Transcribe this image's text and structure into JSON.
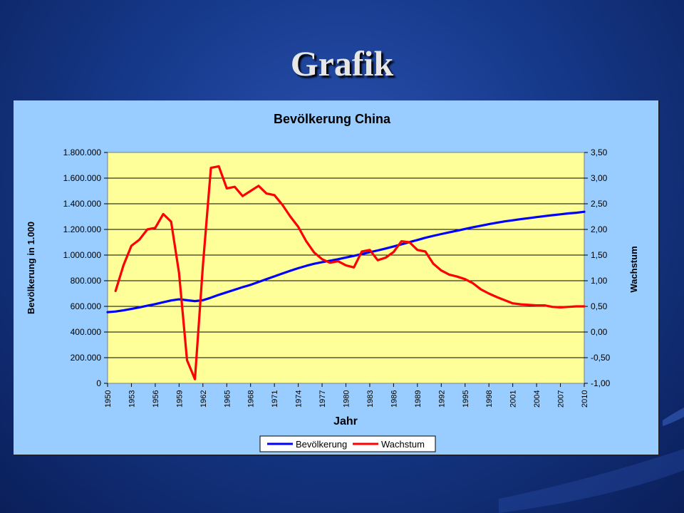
{
  "slide": {
    "title": "Grafik"
  },
  "chart_data": {
    "type": "line",
    "title": "Bevölkerung China",
    "xlabel": "Jahr",
    "ylabel_left": "Bevölkerung in 1.000",
    "ylabel_right": "Wachstum",
    "x": [
      1950,
      1951,
      1952,
      1953,
      1954,
      1955,
      1956,
      1957,
      1958,
      1959,
      1960,
      1961,
      1962,
      1963,
      1964,
      1965,
      1966,
      1967,
      1968,
      1969,
      1970,
      1971,
      1972,
      1973,
      1974,
      1975,
      1976,
      1977,
      1978,
      1979,
      1980,
      1981,
      1982,
      1983,
      1984,
      1985,
      1986,
      1987,
      1988,
      1989,
      1990,
      1991,
      1992,
      1993,
      1994,
      1995,
      1996,
      1997,
      1998,
      1999,
      2000,
      2001,
      2002,
      2003,
      2004,
      2005,
      2006,
      2007,
      2008,
      2009,
      2010
    ],
    "x_tick_labels": [
      "1950",
      "1953",
      "1956",
      "1959",
      "1962",
      "1965",
      "1968",
      "1971",
      "1974",
      "1977",
      "1980",
      "1983",
      "1986",
      "1989",
      "1992",
      "1995",
      "1998",
      "2001",
      "2004",
      "2007",
      "2010"
    ],
    "y_left_ticks": [
      "0",
      "200.000",
      "400.000",
      "600.000",
      "800.000",
      "1.000.000",
      "1.200.000",
      "1.400.000",
      "1.600.000",
      "1.800.000"
    ],
    "y_right_ticks": [
      "-1,00",
      "-0,50",
      "0,00",
      "0,50",
      "1,00",
      "1,50",
      "2,00",
      "2,50",
      "3,00",
      "3,50"
    ],
    "ylim_left": [
      0,
      1800000
    ],
    "ylim_right": [
      -1.0,
      3.5
    ],
    "grid": true,
    "legend_position": "bottom-right",
    "series": [
      {
        "name": "Bevölkerung",
        "axis": "left",
        "color": "#0000ff",
        "values": [
          555000,
          560000,
          569000,
          580000,
          592000,
          605000,
          618000,
          632000,
          646000,
          655000,
          648000,
          641000,
          648000,
          668000,
          690000,
          710000,
          730000,
          750000,
          768000,
          790000,
          812000,
          834000,
          856000,
          878000,
          898000,
          916000,
          932000,
          945000,
          956000,
          968000,
          981000,
          994000,
          1008000,
          1022000,
          1036000,
          1051000,
          1067000,
          1084000,
          1101000,
          1118000,
          1135000,
          1150000,
          1164000,
          1177000,
          1190000,
          1204000,
          1217000,
          1229000,
          1241000,
          1252000,
          1263000,
          1271000,
          1280000,
          1288000,
          1296000,
          1304000,
          1311000,
          1318000,
          1325000,
          1330000,
          1338000
        ]
      },
      {
        "name": "Wachstum",
        "axis": "right",
        "color": "#ff0000",
        "values": [
          null,
          0.8,
          1.3,
          1.68,
          1.8,
          2.0,
          2.03,
          2.3,
          2.15,
          1.15,
          -0.55,
          -0.92,
          1.3,
          3.2,
          3.23,
          2.8,
          2.83,
          2.65,
          2.75,
          2.85,
          2.7,
          2.67,
          2.48,
          2.25,
          2.05,
          1.77,
          1.55,
          1.42,
          1.35,
          1.38,
          1.3,
          1.26,
          1.57,
          1.6,
          1.4,
          1.45,
          1.56,
          1.77,
          1.75,
          1.6,
          1.57,
          1.33,
          1.2,
          1.12,
          1.08,
          1.03,
          0.95,
          0.83,
          0.75,
          0.68,
          0.62,
          0.56,
          0.54,
          0.53,
          0.52,
          0.52,
          0.49,
          0.48,
          0.49,
          0.5,
          0.5
        ]
      }
    ]
  }
}
